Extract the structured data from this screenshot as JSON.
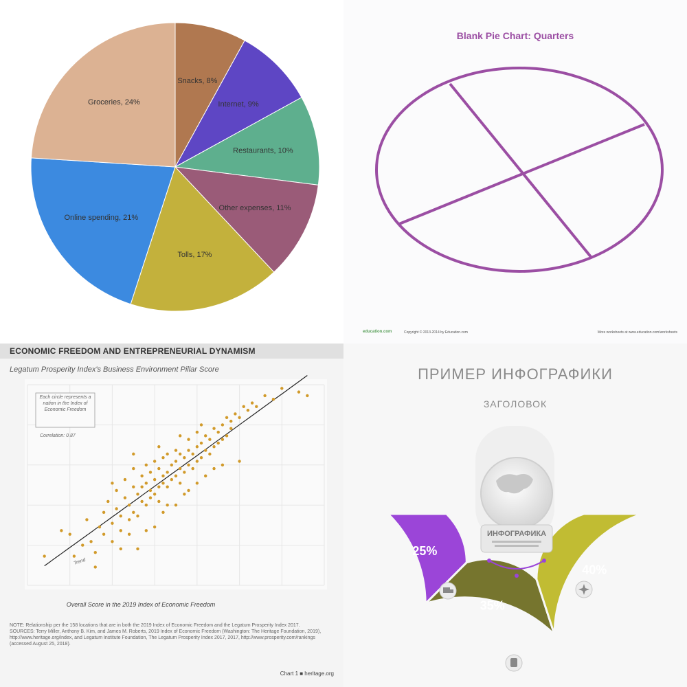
{
  "chart_data": [
    {
      "type": "pie",
      "slices": [
        {
          "label": "Snacks, 8%",
          "value": 8,
          "color": "#b07850"
        },
        {
          "label": "Internet, 9%",
          "value": 9,
          "color": "#5e46c4"
        },
        {
          "label": "Restaurants, 10%",
          "value": 10,
          "color": "#5eaf8e"
        },
        {
          "label": "Other expenses, 11%",
          "value": 11,
          "color": "#9a5b78"
        },
        {
          "label": "Tolls, 17%",
          "value": 17,
          "color": "#c3b13c"
        },
        {
          "label": "Online spending, 21%",
          "value": 21,
          "color": "#3c8ae0"
        },
        {
          "label": "Groceries, 24%",
          "value": 24,
          "color": "#dcb293"
        }
      ]
    },
    {
      "type": "pie",
      "title": "Blank Pie Chart: Quarters",
      "footer_brand": "education.com",
      "footer_copyright": "Copyright © 2013-2014 by Education.com",
      "footer_more": "More worksheets at www.education.com/worksheets",
      "color": "#9b4ea3"
    },
    {
      "type": "scatter",
      "header": "ECONOMIC FREEDOM AND ENTREPRENEURIAL DYNAMISM",
      "subtitle": "Legatum Prosperity Index's Business Environment Pillar Score",
      "xlabel": "Overall Score in the 2019 Index of Economic Freedom",
      "annotation": "Each circle represents a nation in the Index of Economic Freedom",
      "correlation": "Correlation: 0.87",
      "trend_label": "Trend",
      "note": "NOTE: Relationship per the 158 locations that are in both the 2019 Index of Economic Freedom and the Legatum Prosperity Index 2017.",
      "sources": "SOURCES: Terry Miller, Anthony B. Kim, and James M. Roberts, 2019 Index of Economic Freedom (Washington: The Heritage Foundation, 2019), http://www.heritage.org/index, and Legatum Institute Foundation, The Legatum Prosperity Index 2017, 2017, http://www.prosperity.com/rankings (accessed August 25, 2018).",
      "credit": "Chart 1 ■ heritage.org",
      "point_color": "#d19a2a",
      "xlim": [
        20,
        90
      ],
      "ylim": [
        30,
        85
      ],
      "points": [
        [
          24,
          38
        ],
        [
          28,
          45
        ],
        [
          30,
          44
        ],
        [
          33,
          41
        ],
        [
          34,
          48
        ],
        [
          35,
          42
        ],
        [
          36,
          39
        ],
        [
          37,
          46
        ],
        [
          38,
          50
        ],
        [
          38,
          44
        ],
        [
          39,
          53
        ],
        [
          40,
          47
        ],
        [
          40,
          42
        ],
        [
          41,
          51
        ],
        [
          41,
          56
        ],
        [
          42,
          49
        ],
        [
          42,
          45
        ],
        [
          43,
          54
        ],
        [
          43,
          59
        ],
        [
          44,
          52
        ],
        [
          44,
          48
        ],
        [
          45,
          57
        ],
        [
          45,
          50
        ],
        [
          45,
          62
        ],
        [
          46,
          55
        ],
        [
          46,
          49
        ],
        [
          47,
          60
        ],
        [
          47,
          53
        ],
        [
          47,
          57
        ],
        [
          48,
          58
        ],
        [
          48,
          52
        ],
        [
          48,
          63
        ],
        [
          49,
          56
        ],
        [
          49,
          61
        ],
        [
          49,
          54
        ],
        [
          50,
          59
        ],
        [
          50,
          55
        ],
        [
          50,
          64
        ],
        [
          51,
          57
        ],
        [
          51,
          62
        ],
        [
          51,
          53
        ],
        [
          52,
          60
        ],
        [
          52,
          58
        ],
        [
          52,
          65
        ],
        [
          53,
          61
        ],
        [
          53,
          57
        ],
        [
          53,
          66
        ],
        [
          54,
          63
        ],
        [
          54,
          59
        ],
        [
          55,
          64
        ],
        [
          55,
          60
        ],
        [
          55,
          67
        ],
        [
          56,
          62
        ],
        [
          56,
          66
        ],
        [
          56,
          58
        ],
        [
          57,
          65
        ],
        [
          57,
          61
        ],
        [
          58,
          67
        ],
        [
          58,
          63
        ],
        [
          58,
          70
        ],
        [
          59,
          66
        ],
        [
          59,
          62
        ],
        [
          60,
          68
        ],
        [
          60,
          64
        ],
        [
          60,
          72
        ],
        [
          61,
          69
        ],
        [
          61,
          65
        ],
        [
          62,
          71
        ],
        [
          62,
          67
        ],
        [
          63,
          70
        ],
        [
          63,
          66
        ],
        [
          64,
          73
        ],
        [
          64,
          68
        ],
        [
          65,
          72
        ],
        [
          65,
          69
        ],
        [
          66,
          74
        ],
        [
          66,
          70
        ],
        [
          67,
          76
        ],
        [
          67,
          71
        ],
        [
          68,
          75
        ],
        [
          68,
          73
        ],
        [
          69,
          77
        ],
        [
          70,
          76
        ],
        [
          71,
          79
        ],
        [
          72,
          78
        ],
        [
          73,
          80
        ],
        [
          74,
          79
        ],
        [
          76,
          82
        ],
        [
          78,
          81
        ],
        [
          80,
          84
        ],
        [
          84,
          83
        ],
        [
          86,
          82
        ],
        [
          40,
          58
        ],
        [
          44,
          44
        ],
        [
          46,
          40
        ],
        [
          50,
          46
        ],
        [
          52,
          50
        ],
        [
          55,
          52
        ],
        [
          58,
          56
        ],
        [
          62,
          60
        ],
        [
          66,
          63
        ],
        [
          70,
          64
        ],
        [
          42,
          40
        ],
        [
          36,
          35
        ],
        [
          31,
          38
        ],
        [
          53,
          52
        ],
        [
          60,
          58
        ],
        [
          64,
          62
        ],
        [
          57,
          55
        ],
        [
          48,
          45
        ],
        [
          45,
          66
        ],
        [
          51,
          68
        ],
        [
          56,
          71
        ],
        [
          61,
          74
        ]
      ]
    },
    {
      "type": "donut",
      "title": "ПРИМЕР ИНФОГРАФИКИ",
      "subtitle": "ЗАГОЛОВОК",
      "center_label": "ИНФОГРАФИКА",
      "segments": [
        {
          "label": "25%",
          "value": 25,
          "color": "#9b45d8"
        },
        {
          "label": "35%",
          "value": 35,
          "color": "#76752e"
        },
        {
          "label": "40%",
          "value": 40,
          "color": "#c1bc33"
        }
      ]
    }
  ]
}
